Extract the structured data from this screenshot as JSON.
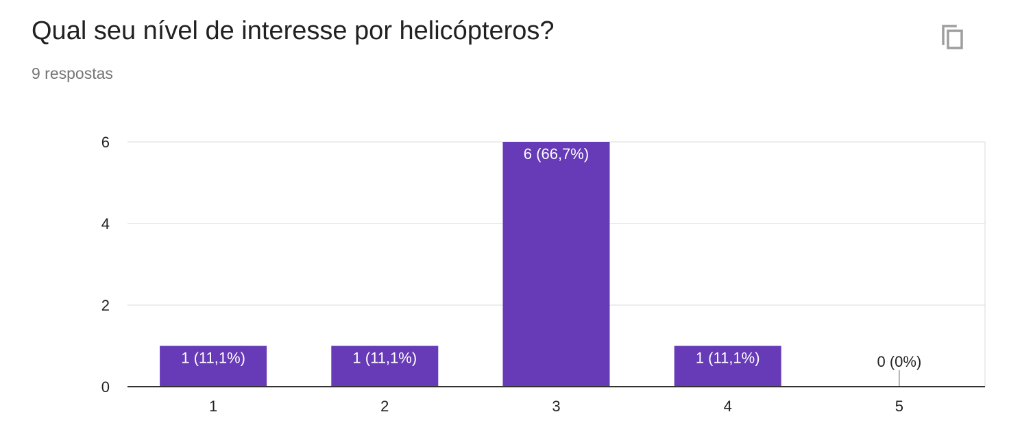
{
  "card": {
    "title": "Qual seu nível de interesse por helicópteros?",
    "responses": "9 respostas",
    "copy_icon": "copy-icon"
  },
  "colors": {
    "bar": "#673ab7",
    "label_inside": "#ffffff",
    "label_outside": "#222222",
    "grid": "#e6e6e6",
    "axis": "#333333"
  },
  "chart_data": {
    "type": "bar",
    "categories": [
      "1",
      "2",
      "3",
      "4",
      "5"
    ],
    "values": [
      1,
      1,
      6,
      1,
      0
    ],
    "labels": [
      "1 (11,1%)",
      "1 (11,1%)",
      "6 (66,7%)",
      "1 (11,1%)",
      "0 (0%)"
    ],
    "title": "Qual seu nível de interesse por helicópteros?",
    "subtitle": "9 respostas",
    "xlabel": "",
    "ylabel": "",
    "ylim": [
      0,
      6
    ],
    "yticks": [
      0,
      2,
      4,
      6
    ],
    "grid": true,
    "legend": "none"
  }
}
